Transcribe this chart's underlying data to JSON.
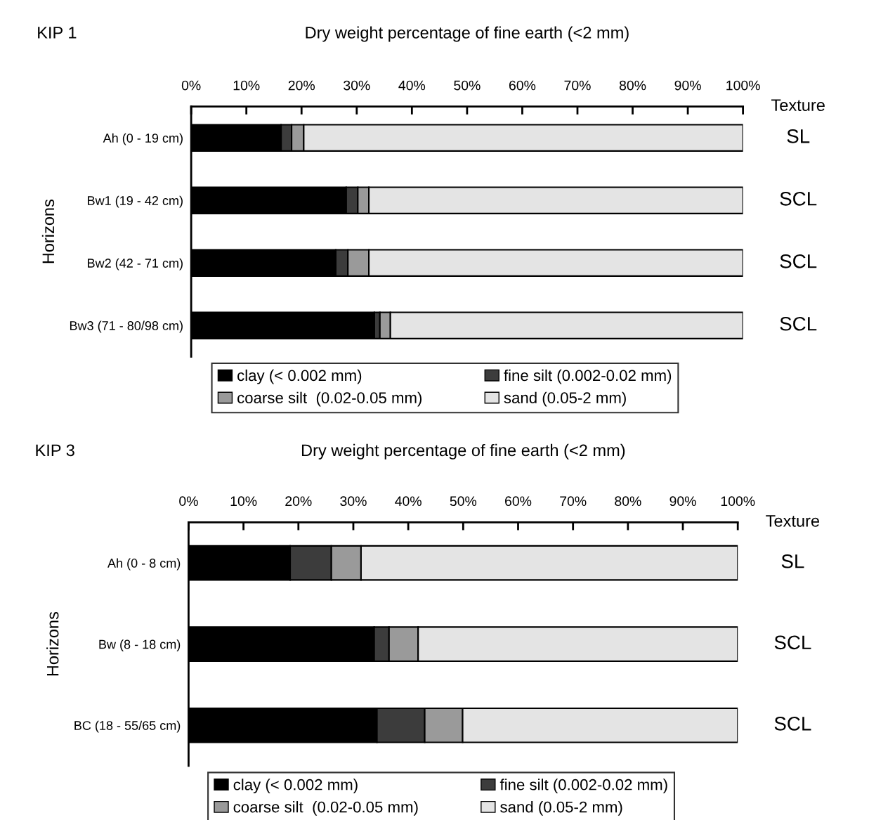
{
  "chart_data": [
    {
      "type": "bar",
      "orientation": "horizontal",
      "stacked": true,
      "title": "KIP 1",
      "subtitle": "Dry weight percentage of fine earth (<2 mm)",
      "ylabel": "Horizons",
      "y2label": "Texture",
      "categories": [
        "Ah (0 - 19 cm)",
        "Bw1 (19 - 42 cm)",
        "Bw2 (42 - 71 cm)",
        "Bw3 (71 - 80/98 cm)"
      ],
      "series": [
        {
          "name": "clay (< 0.002 mm)",
          "color": "#000000",
          "values": [
            16.3,
            28.1,
            26.2,
            33.2
          ]
        },
        {
          "name": "fine silt (0.002-0.02 mm)",
          "color": "#3c3c3c",
          "values": [
            1.9,
            2.1,
            2.2,
            1.0
          ]
        },
        {
          "name": "coarse silt  (0.02-0.05 mm)",
          "color": "#9a9a9a",
          "values": [
            2.2,
            2.0,
            3.8,
            1.9
          ]
        },
        {
          "name": "sand (0.05-2 mm)",
          "color": "#e4e4e4",
          "values": [
            79.6,
            67.8,
            67.8,
            63.9
          ]
        }
      ],
      "xlim": [
        0,
        100
      ],
      "xticks": [
        {
          "value": 0,
          "label": "0%"
        },
        {
          "value": 10,
          "label": "10%"
        },
        {
          "value": 20,
          "label": "20%"
        },
        {
          "value": 30,
          "label": "30%"
        },
        {
          "value": 40,
          "label": "40%"
        },
        {
          "value": 50,
          "label": "50%"
        },
        {
          "value": 60,
          "label": "60%"
        },
        {
          "value": 70,
          "label": "70%"
        },
        {
          "value": 80,
          "label": "80%"
        },
        {
          "value": 90,
          "label": "90%"
        },
        {
          "value": 100,
          "label": "100%"
        }
      ],
      "annotations": [
        "SL",
        "SCL",
        "SCL",
        "SCL"
      ],
      "grid": false,
      "legend": "bottom"
    },
    {
      "type": "bar",
      "orientation": "horizontal",
      "stacked": true,
      "title": "KIP 3",
      "subtitle": "Dry weight percentage of fine earth (<2 mm)",
      "ylabel": "Horizons",
      "y2label": "Texture",
      "categories": [
        "Ah (0 - 8 cm)",
        "Bw (8 - 18 cm)",
        "BC (18 - 55/65 cm)"
      ],
      "series": [
        {
          "name": "clay (< 0.002 mm)",
          "color": "#000000",
          "values": [
            18.5,
            33.8,
            34.3
          ]
        },
        {
          "name": "fine silt (0.002-0.02 mm)",
          "color": "#3c3c3c",
          "values": [
            7.5,
            2.7,
            8.7
          ]
        },
        {
          "name": "coarse silt  (0.02-0.05 mm)",
          "color": "#9a9a9a",
          "values": [
            5.4,
            5.3,
            6.9
          ]
        },
        {
          "name": "sand (0.05-2 mm)",
          "color": "#e4e4e4",
          "values": [
            68.6,
            58.2,
            50.1
          ]
        }
      ],
      "xlim": [
        0,
        100
      ],
      "xticks": [
        {
          "value": 0,
          "label": "0%"
        },
        {
          "value": 10,
          "label": "10%"
        },
        {
          "value": 20,
          "label": "20%"
        },
        {
          "value": 30,
          "label": "30%"
        },
        {
          "value": 40,
          "label": "40%"
        },
        {
          "value": 50,
          "label": "50%"
        },
        {
          "value": 60,
          "label": "60%"
        },
        {
          "value": 70,
          "label": "70%"
        },
        {
          "value": 80,
          "label": "80%"
        },
        {
          "value": 90,
          "label": "90%"
        },
        {
          "value": 100,
          "label": "100%"
        }
      ],
      "annotations": [
        "SL",
        "SCL",
        "SCL"
      ],
      "grid": false,
      "legend": "bottom"
    }
  ]
}
